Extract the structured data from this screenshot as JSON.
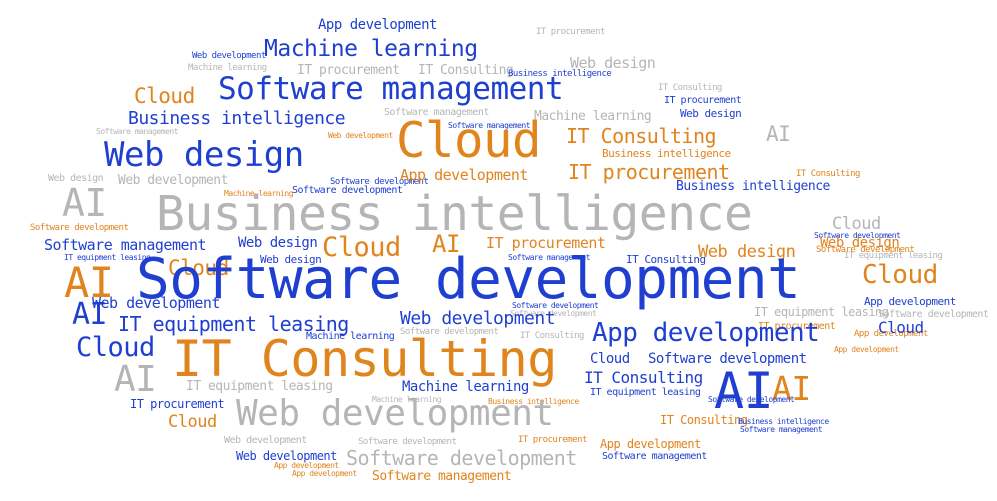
{
  "colors": {
    "blue": "#1f3fd0",
    "orange": "#e0841e",
    "gray": "#b5b5b5"
  },
  "words": [
    "App development",
    "Machine learning",
    "IT procurement",
    "Web development",
    "Machine learning",
    "IT procurement",
    "IT Consulting",
    "Business intelligence",
    "Web design",
    "Cloud",
    "Software management",
    "IT Consulting",
    "IT procurement",
    "Business intelligence",
    "Software management",
    "Machine learning",
    "Web design",
    "Web development",
    "Software management",
    "Software management",
    "Cloud",
    "IT Consulting",
    "AI",
    "Web design",
    "Business intelligence",
    "Software development",
    "IT procurement",
    "Web design",
    "Web development",
    "Software development",
    "App development",
    "Business intelligence",
    "Software development",
    "AI",
    "Business intelligence",
    "Cloud",
    "Software development",
    "Software management",
    "Web design",
    "Cloud",
    "AI",
    "IT procurement",
    "Web design",
    "Web development",
    "IT Consulting",
    "Cloud",
    "Software development",
    "AI",
    "Software management",
    "App development",
    "IT equipment leasing",
    "Software development",
    "Web development",
    "AI",
    "IT procurement",
    "Software development",
    "Software management",
    "App development",
    "Cloud",
    "Machine learning",
    "IT Consulting",
    "Cloud",
    "Web development",
    "IT Consulting",
    "App development",
    "Cloud",
    "Software development",
    "AI",
    "IT equipment leasing",
    "Machine learning",
    "IT Consulting",
    "IT equipment leasing",
    "AI",
    "Software development",
    "AI",
    "IT procurement",
    "Business intelligence",
    "Web development",
    "Machine learning",
    "Business intelligence",
    "Cloud",
    "Web development",
    "IT Consulting",
    "Web development",
    "Software development",
    "IT procurement",
    "App development",
    "Software development",
    "Web development",
    "App development",
    "Software development",
    "Software management",
    "Web development",
    "Web design",
    "Business intelligence",
    "Machine learning",
    "Software management"
  ]
}
